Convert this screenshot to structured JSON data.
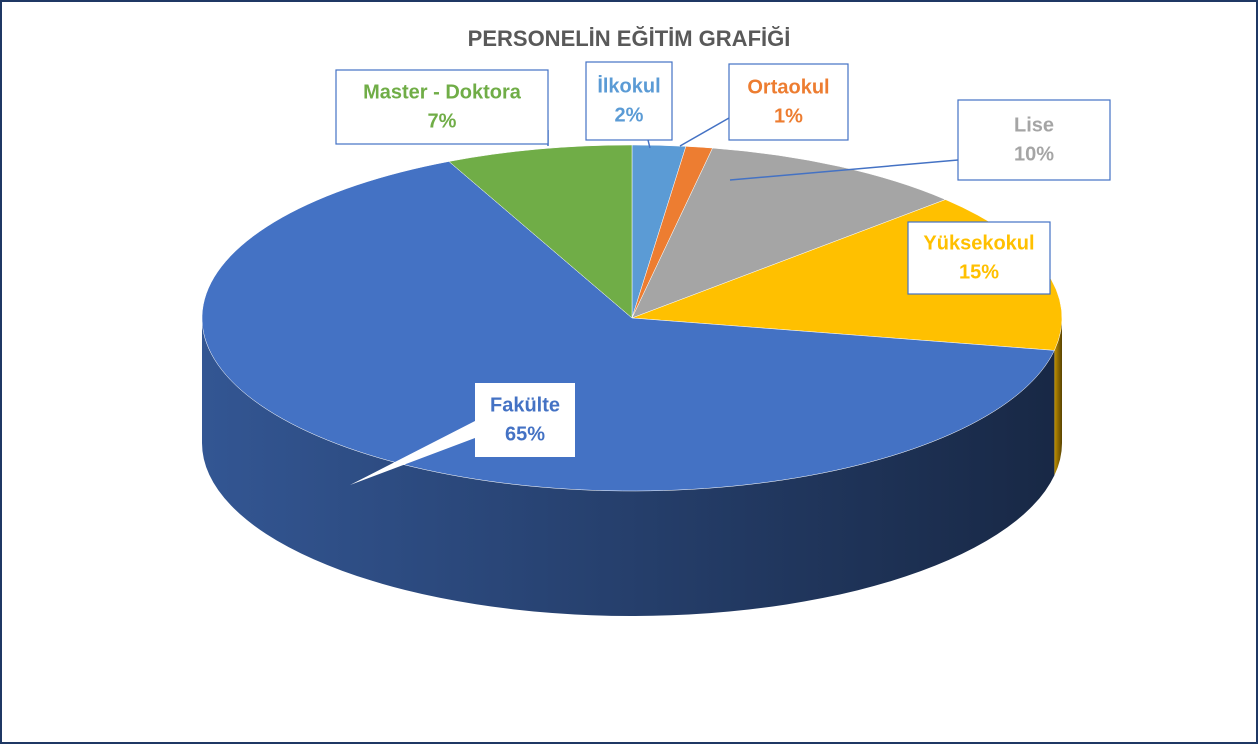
{
  "chart_data": {
    "type": "pie",
    "title": "PERSONELİN EĞİTİM GRAFİĞİ",
    "categories": [
      "İlkokul",
      "Ortaokul",
      "Lise",
      "Yüksekokul",
      "Fakülte",
      "Master - Doktora"
    ],
    "values": [
      2,
      1,
      10,
      15,
      65,
      7
    ],
    "value_labels": [
      "2%",
      "1%",
      "10%",
      "15%",
      "65%",
      "7%"
    ],
    "colors": [
      "#5b9bd5",
      "#ed7d31",
      "#a5a5a5",
      "#ffc000",
      "#4472c4",
      "#70ad47"
    ]
  }
}
